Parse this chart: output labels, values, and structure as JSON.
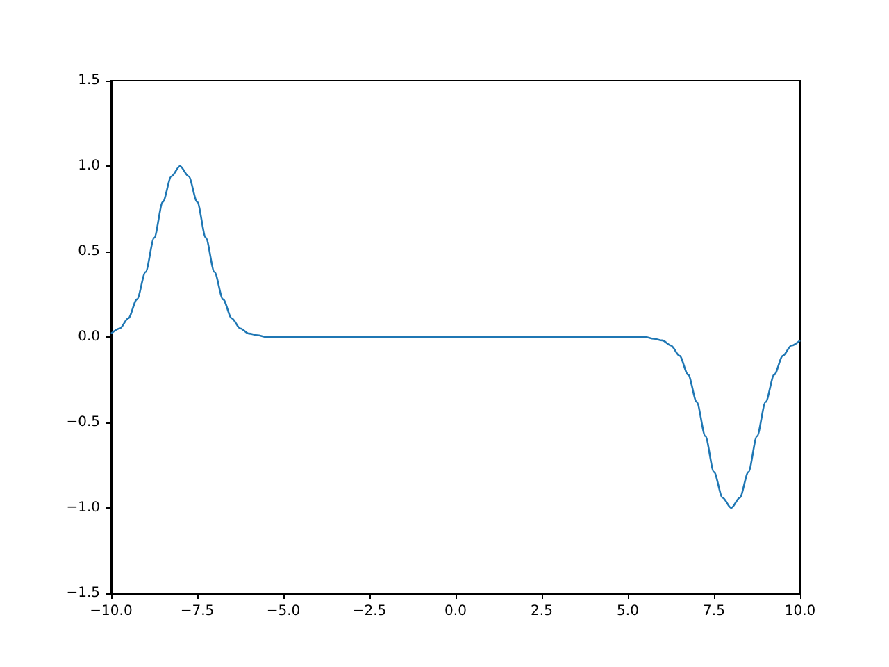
{
  "chart_data": {
    "type": "line",
    "x": [
      -10,
      -9.75,
      -9.5,
      -9.25,
      -9,
      -8.75,
      -8.5,
      -8.25,
      -8,
      -7.75,
      -7.5,
      -7.25,
      -7,
      -6.75,
      -6.5,
      -6.25,
      -6,
      -5.75,
      -5.5,
      -5,
      -4,
      -3,
      -2,
      -1,
      0,
      1,
      2,
      3,
      4,
      5,
      5.5,
      5.75,
      6,
      6.25,
      6.5,
      6.75,
      7,
      7.25,
      7.5,
      7.75,
      8,
      8.25,
      8.5,
      8.75,
      9,
      9.25,
      9.5,
      9.75,
      10
    ],
    "series": [
      {
        "color": "#1f77b4",
        "values": [
          0.02,
          0.05,
          0.11,
          0.22,
          0.38,
          0.58,
          0.79,
          0.94,
          1,
          0.94,
          0.79,
          0.58,
          0.38,
          0.22,
          0.11,
          0.05,
          0.02,
          0.01,
          0,
          0,
          0,
          0,
          0,
          0,
          0,
          0,
          0,
          0,
          0,
          0,
          0,
          -0.01,
          -0.02,
          -0.05,
          -0.11,
          -0.22,
          -0.38,
          -0.58,
          -0.79,
          -0.94,
          -1,
          -0.94,
          -0.79,
          -0.58,
          -0.38,
          -0.22,
          -0.11,
          -0.05,
          -0.02
        ]
      }
    ],
    "xlim": [
      -10,
      10
    ],
    "xticks": [
      {
        "value": -10,
        "label": "−10.0"
      },
      {
        "value": -7.5,
        "label": "−7.5"
      },
      {
        "value": -5,
        "label": "−5.0"
      },
      {
        "value": -2.5,
        "label": "−2.5"
      },
      {
        "value": 0,
        "label": "0.0"
      },
      {
        "value": 2.5,
        "label": "2.5"
      },
      {
        "value": 5,
        "label": "5.0"
      },
      {
        "value": 7.5,
        "label": "7.5"
      },
      {
        "value": 10,
        "label": "10.0"
      }
    ],
    "ylim": [
      -1.5,
      1.5
    ],
    "yticks": [
      {
        "value": -1.5,
        "label": "−1.5"
      },
      {
        "value": -1,
        "label": "−1.0"
      },
      {
        "value": -0.5,
        "label": "−0.5"
      },
      {
        "value": 0,
        "label": "0.0"
      },
      {
        "value": 0.5,
        "label": "0.5"
      },
      {
        "value": 1,
        "label": "1.0"
      },
      {
        "value": 1.5,
        "label": "1.5"
      }
    ],
    "grid": false,
    "marker": "none",
    "line_style": "solid"
  }
}
